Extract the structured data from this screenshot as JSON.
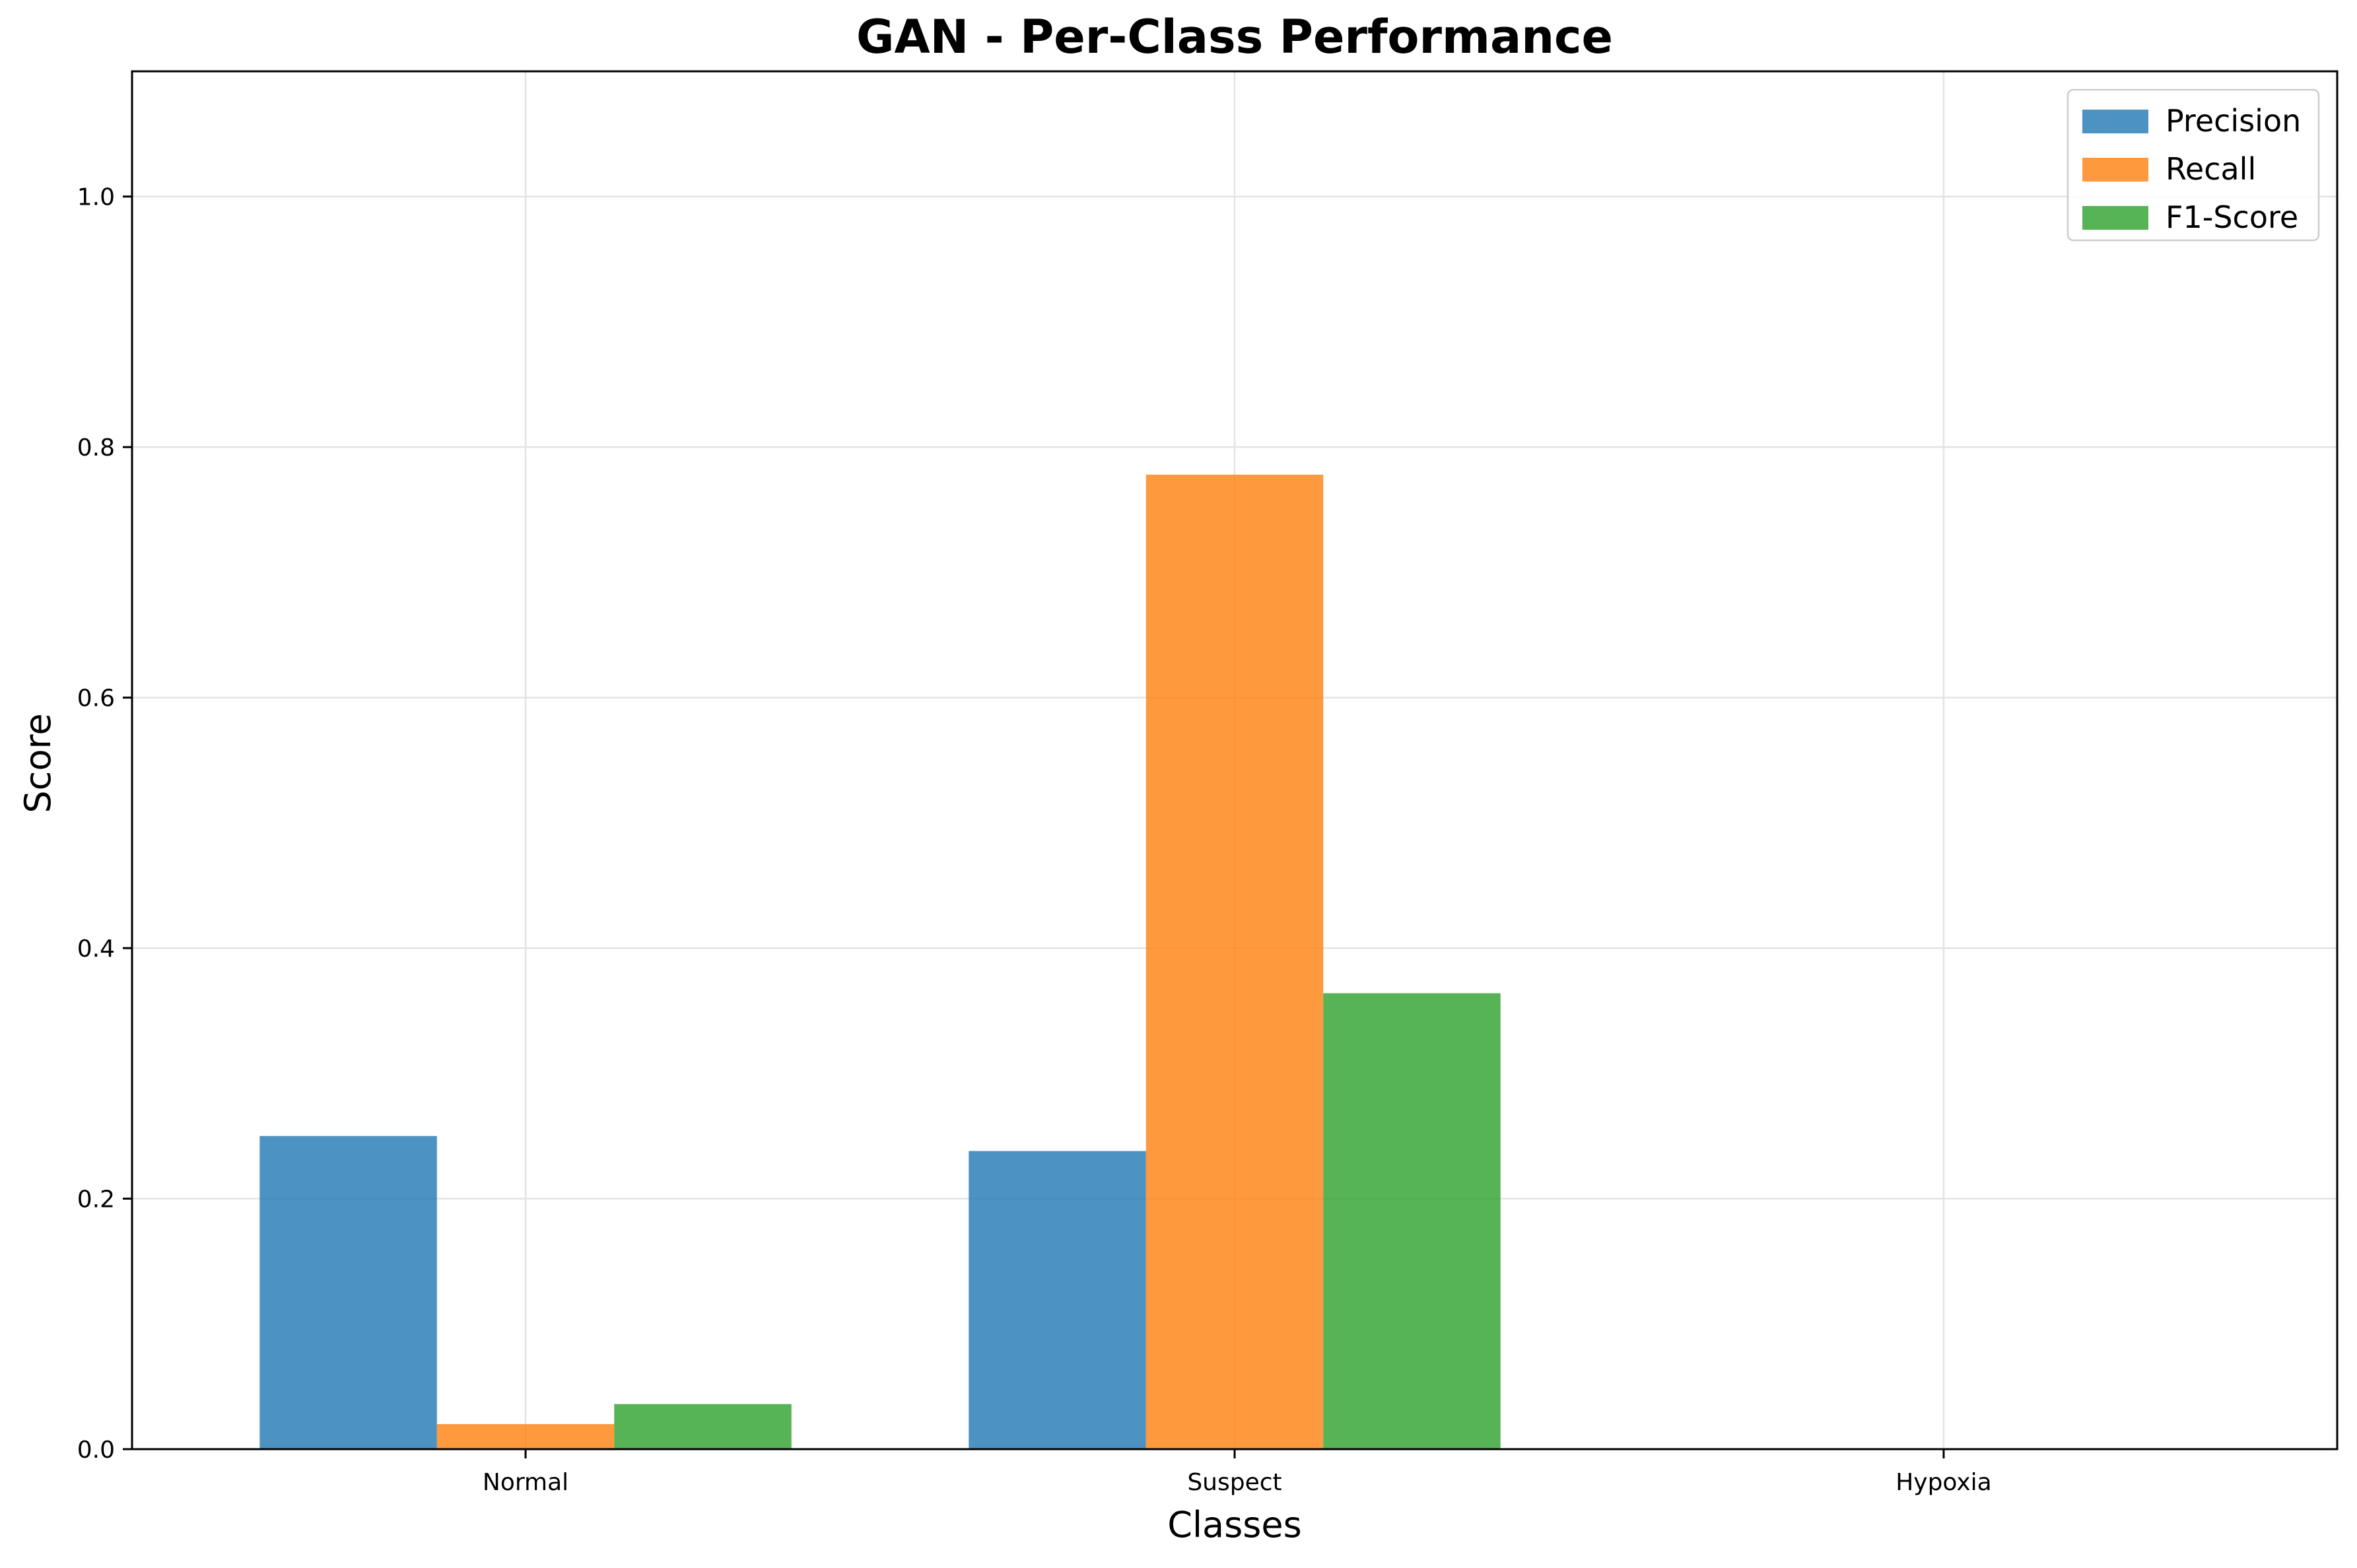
{
  "chart_data": {
    "type": "bar",
    "title": "GAN - Per-Class Performance",
    "xlabel": "Classes",
    "ylabel": "Score",
    "categories": [
      "Normal",
      "Suspect",
      "Hypoxia"
    ],
    "series": [
      {
        "name": "Precision",
        "color": "#1f77b4",
        "values": [
          0.25,
          0.238,
          0.0
        ]
      },
      {
        "name": "Recall",
        "color": "#ff7f0e",
        "values": [
          0.02,
          0.778,
          0.0
        ]
      },
      {
        "name": "F1-Score",
        "color": "#2ca02c",
        "values": [
          0.036,
          0.364,
          0.0
        ]
      }
    ],
    "ylim": [
      0,
      1.1
    ],
    "yticks": [
      "0.0",
      "0.2",
      "0.4",
      "0.6",
      "0.8",
      "1.0"
    ],
    "grid": true,
    "legend": "top-right"
  }
}
